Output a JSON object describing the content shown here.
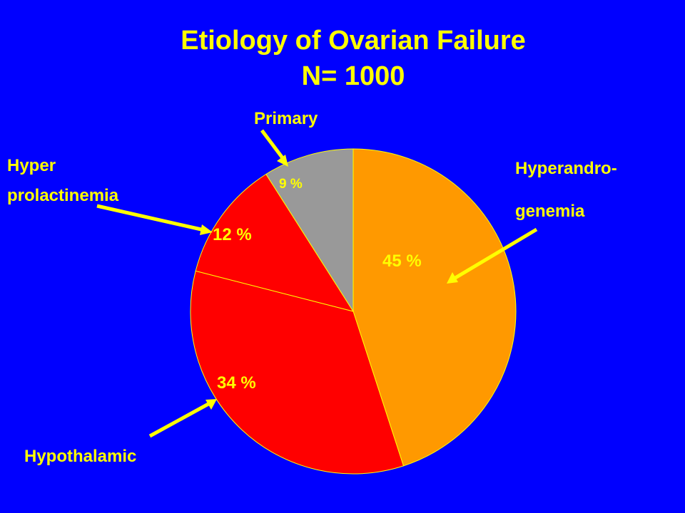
{
  "title": {
    "line1": "Etiology of Ovarian Failure",
    "line2": "N= 1000"
  },
  "colors": {
    "background": "#0000FF",
    "title": "#FFFF00",
    "hyperandrogenemia": "#FF9900",
    "hypothalamic": "#FF0000",
    "hyperprolactinemia": "#FF0000",
    "primary": "#999999"
  },
  "labels": {
    "primary": "Primary",
    "hyper_line1": "Hyper",
    "hyper_line2": "prolactinemia",
    "andro_line1": "Hyperandro-",
    "andro_line2": "genemia",
    "hypothalamic": "Hypothalamic"
  },
  "chart_data": {
    "type": "pie",
    "title": "Etiology of Ovarian Failure N= 1000",
    "slices": [
      {
        "name": "Hyperandrogenemia",
        "value": 45,
        "label": "45 %",
        "color": "#FF9900"
      },
      {
        "name": "Hypothalamic",
        "value": 34,
        "label": "34 %",
        "color": "#FF0000"
      },
      {
        "name": "Hyperprolactinemia",
        "value": 12,
        "label": "12 %",
        "color": "#FF0000"
      },
      {
        "name": "Primary",
        "value": 9,
        "label": "9 %",
        "color": "#999999"
      }
    ],
    "start": "12 o'clock",
    "direction": "clockwise"
  }
}
